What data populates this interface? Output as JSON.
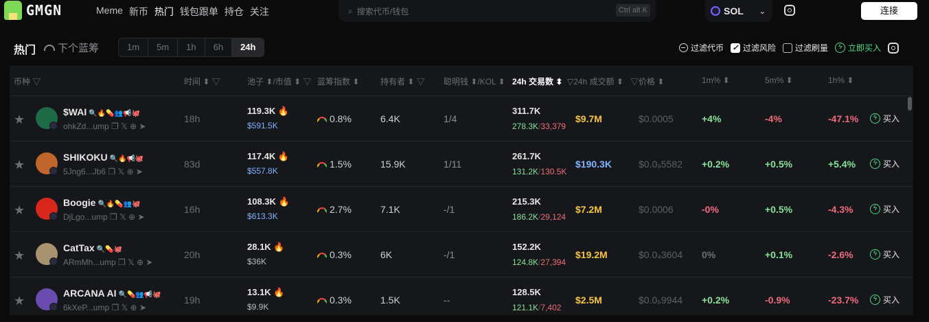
{
  "header": {
    "logo": "GMGN",
    "nav": [
      "Meme",
      "新币",
      "热门",
      "钱包跟单",
      "持仓",
      "关注"
    ],
    "active_nav": 2,
    "search_placeholder": "搜索代币/钱包",
    "shortcut": "Ctrl alt K",
    "chain": "SOL",
    "connect": "连接"
  },
  "section": {
    "title": "热门",
    "next_bluechip": "下个蓝筹",
    "timeframes": [
      "1m",
      "5m",
      "1h",
      "6h",
      "24h"
    ],
    "active_timeframe": "24h"
  },
  "filters": {
    "filter_token": "过滤代币",
    "filter_risk": "过滤风险",
    "filter_risk_checked": true,
    "filter_wash": "过滤刷量",
    "filter_wash_checked": false,
    "quick_buy": "立即买入"
  },
  "columns": {
    "token": "币种",
    "time": "时间",
    "pool": "池子",
    "mcap": "/市值",
    "bluechip": "蓝筹指数",
    "holders": "持有者",
    "smart": "聪明钱",
    "kol": "/KOL",
    "tx": "24h 交易数",
    "volume": "24h 成交额",
    "price": "价格",
    "m1": "1m%",
    "m5": "5m%",
    "h1": "1h%"
  },
  "colors": {
    "up": "#86e39a",
    "down": "#ef6b7b",
    "volume_yellow": "#f5c542",
    "volume_blue": "#7fb3ff",
    "mcap_blue": "#7fb3ff"
  },
  "rows": [
    {
      "name": "$WAI",
      "icons": "🔍🔥💊👥📢🐙",
      "addr": "ohkZd...ump",
      "time": "18h",
      "pool": "119.3K",
      "mcap": "$591.5K",
      "mcap_color": "blue",
      "bluechip": "0.8%",
      "holders": "6.4K",
      "smart": "1/4",
      "tx": "311.7K",
      "buys": "278.3K",
      "sells": "33,379",
      "volume": "$9.7M",
      "volume_color": "yellow",
      "price": "$0.0005",
      "m1": "+4%",
      "m5": "-4%",
      "h1": "-47.1%",
      "buy": "买入",
      "avatar": "#1f6b45"
    },
    {
      "name": "SHIKOKU",
      "icons": "🔍🔥📢🐙",
      "addr": "5Jng6...Jb6",
      "time": "83d",
      "pool": "117.4K",
      "mcap": "$557.8K",
      "mcap_color": "blue",
      "bluechip": "1.5%",
      "holders": "15.9K",
      "smart": "1/11",
      "tx": "261.7K",
      "buys": "131.2K",
      "sells": "130.5K",
      "volume": "$190.3K",
      "volume_color": "blue",
      "price": "$0.0₉5582",
      "m1": "+0.2%",
      "m5": "+0.5%",
      "h1": "+5.4%",
      "buy": "买入",
      "avatar": "#c0652b"
    },
    {
      "name": "Boogie",
      "icons": "🔍🔥💊👥🐙",
      "addr": "DjLgo...ump",
      "time": "16h",
      "pool": "108.3K",
      "mcap": "$613.3K",
      "mcap_color": "blue",
      "bluechip": "2.7%",
      "holders": "7.1K",
      "smart": "-/1",
      "tx": "215.3K",
      "buys": "186.2K",
      "sells": "29,124",
      "volume": "$7.2M",
      "volume_color": "yellow",
      "price": "$0.0006",
      "m1": "-0%",
      "m5": "+0.5%",
      "h1": "-4.3%",
      "buy": "买入",
      "avatar": "#d8261c"
    },
    {
      "name": "CatTax",
      "icons": "🔍💊🐙",
      "addr": "ARmMh...ump",
      "time": "20h",
      "pool": "28.1K",
      "mcap": "$36K",
      "mcap_color": "gray",
      "bluechip": "0.3%",
      "holders": "6K",
      "smart": "-/1",
      "tx": "152.2K",
      "buys": "124.8K",
      "sells": "27,394",
      "volume": "$19.2M",
      "volume_color": "yellow",
      "price": "$0.0₄3604",
      "m1": "0%",
      "m5": "+0.1%",
      "h1": "-2.6%",
      "buy": "买入",
      "avatar": "#a89270"
    },
    {
      "name": "ARCANA AI",
      "icons": "🔍💊👥📢🐙",
      "addr": "6kXeP...ump",
      "time": "19h",
      "pool": "13.1K",
      "mcap": "$9.9K",
      "mcap_color": "gray",
      "bluechip": "0.3%",
      "holders": "1.5K",
      "smart": "--",
      "tx": "128.5K",
      "buys": "121.1K",
      "sells": "7,402",
      "volume": "$2.5M",
      "volume_color": "yellow",
      "price": "$0.0₅9944",
      "m1": "+0.2%",
      "m5": "-0.9%",
      "h1": "-23.7%",
      "buy": "买入",
      "avatar": "#6a4bb0"
    }
  ]
}
